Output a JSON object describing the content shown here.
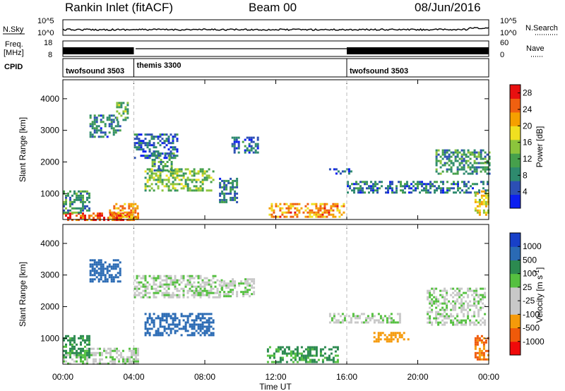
{
  "header": {
    "station": "Rankin Inlet (fitACF)",
    "beam": "Beam 00",
    "date": "08/Jun/2016"
  },
  "noise_panel": {
    "left_label": "N.Sky",
    "right_label": "N.Search",
    "left_ticks": [
      "10^5",
      "10^0"
    ],
    "right_ticks": [
      "10^5",
      "10^0"
    ]
  },
  "freq_panel": {
    "left_label_top": "Freq.",
    "left_label_bottom": "[MHz]",
    "right_label": "Nave",
    "left_ticks": [
      18,
      8
    ],
    "right_ticks": [
      60,
      0
    ]
  },
  "cpid_panel": {
    "label": "CPID",
    "segments": [
      {
        "name": "twofsound 3503",
        "start_hour": 0
      },
      {
        "name": "themis 3300",
        "start_hour": 4
      },
      {
        "name": "twofsound 3503",
        "start_hour": 16
      }
    ]
  },
  "time_axis": {
    "label": "Time UT",
    "ticks": [
      "00:00",
      "04:00",
      "08:00",
      "12:00",
      "16:00",
      "20:00",
      "00:00"
    ],
    "range_hours": [
      0,
      24
    ]
  },
  "colors": {
    "power_scale": [
      "#0b1ff0",
      "#2c4fb4",
      "#2e8a6e",
      "#46a04c",
      "#8cc43c",
      "#f0e020",
      "#f5a000",
      "#f06010",
      "#e81010"
    ],
    "velocity_scale": [
      "#f00a0a",
      "#f05a0a",
      "#f59a0a",
      "#c8c8c8",
      "#c8c8c8",
      "#55c040",
      "#2c8a50",
      "#2a6ab4",
      "#1840c8"
    ]
  },
  "chart_data": [
    {
      "type": "heatmap",
      "title": "",
      "xlabel": "",
      "ylabel": "Slant Range [km]",
      "xlim": [
        0,
        24
      ],
      "ylim": [
        180,
        4600
      ],
      "y_ticks": [
        1000,
        2000,
        3000,
        4000
      ],
      "colorbar": {
        "label": "Power [dB]",
        "ticks": [
          4,
          8,
          12,
          16,
          20,
          24,
          28
        ],
        "range": [
          0,
          30
        ]
      },
      "regions": [
        {
          "x": [
            0,
            4.2
          ],
          "y": [
            180,
            400
          ],
          "value": 26
        },
        {
          "x": [
            2.6,
            4.2
          ],
          "y": [
            180,
            700
          ],
          "value": 22
        },
        {
          "x": [
            0,
            1.5
          ],
          "y": [
            400,
            1100
          ],
          "value": 10
        },
        {
          "x": [
            1.5,
            3.2
          ],
          "y": [
            2800,
            3500
          ],
          "value": 8
        },
        {
          "x": [
            3.0,
            3.7
          ],
          "y": [
            3300,
            3900
          ],
          "value": 12
        },
        {
          "x": [
            4.0,
            6.4
          ],
          "y": [
            2100,
            2900
          ],
          "value": 6
        },
        {
          "x": [
            4.6,
            8.5
          ],
          "y": [
            1100,
            1800
          ],
          "value": 14
        },
        {
          "x": [
            5.0,
            6.2
          ],
          "y": [
            1700,
            2300
          ],
          "value": 10
        },
        {
          "x": [
            8.8,
            9.8
          ],
          "y": [
            700,
            1500
          ],
          "value": 8
        },
        {
          "x": [
            9.5,
            11.0
          ],
          "y": [
            2300,
            2800
          ],
          "value": 6
        },
        {
          "x": [
            11.6,
            15.8
          ],
          "y": [
            250,
            700
          ],
          "value": 22
        },
        {
          "x": [
            15.0,
            16.3
          ],
          "y": [
            1600,
            1800
          ],
          "value": 5
        },
        {
          "x": [
            16.0,
            24.0
          ],
          "y": [
            1000,
            1400
          ],
          "value": 7
        },
        {
          "x": [
            21.0,
            24.0
          ],
          "y": [
            1600,
            2400
          ],
          "value": 10
        },
        {
          "x": [
            23.2,
            24.0
          ],
          "y": [
            300,
            1100
          ],
          "value": 18
        }
      ]
    },
    {
      "type": "heatmap",
      "title": "",
      "xlabel": "Time UT",
      "ylabel": "Slant Range [km]",
      "xlim": [
        0,
        24
      ],
      "ylim": [
        180,
        4600
      ],
      "y_ticks": [
        1000,
        2000,
        3000,
        4000
      ],
      "colorbar": {
        "label": "Velocity [m s^-1]",
        "ticks": [
          1000,
          500,
          100,
          25,
          -25,
          -100,
          -500,
          -1000
        ],
        "range": [
          -1000,
          1000
        ]
      },
      "regions": [
        {
          "x": [
            0,
            4.2
          ],
          "y": [
            180,
            700
          ],
          "value": 0
        },
        {
          "x": [
            0,
            1.5
          ],
          "y": [
            400,
            1100
          ],
          "value": 150
        },
        {
          "x": [
            1.5,
            3.2
          ],
          "y": [
            2800,
            3500
          ],
          "value": 700
        },
        {
          "x": [
            4.6,
            8.5
          ],
          "y": [
            1100,
            1800
          ],
          "value": 600
        },
        {
          "x": [
            4.0,
            9.0
          ],
          "y": [
            2300,
            3000
          ],
          "value": 0
        },
        {
          "x": [
            8.8,
            10.8
          ],
          "y": [
            2300,
            2900
          ],
          "value": 0
        },
        {
          "x": [
            11.5,
            15.5
          ],
          "y": [
            250,
            750
          ],
          "value": 150
        },
        {
          "x": [
            15.0,
            19.0
          ],
          "y": [
            1500,
            1800
          ],
          "value": 0
        },
        {
          "x": [
            17.5,
            19.5
          ],
          "y": [
            900,
            1200
          ],
          "value": -300
        },
        {
          "x": [
            20.5,
            23.8
          ],
          "y": [
            1400,
            2600
          ],
          "value": 0
        },
        {
          "x": [
            23.2,
            24.0
          ],
          "y": [
            300,
            1100
          ],
          "value": -500
        }
      ]
    }
  ]
}
